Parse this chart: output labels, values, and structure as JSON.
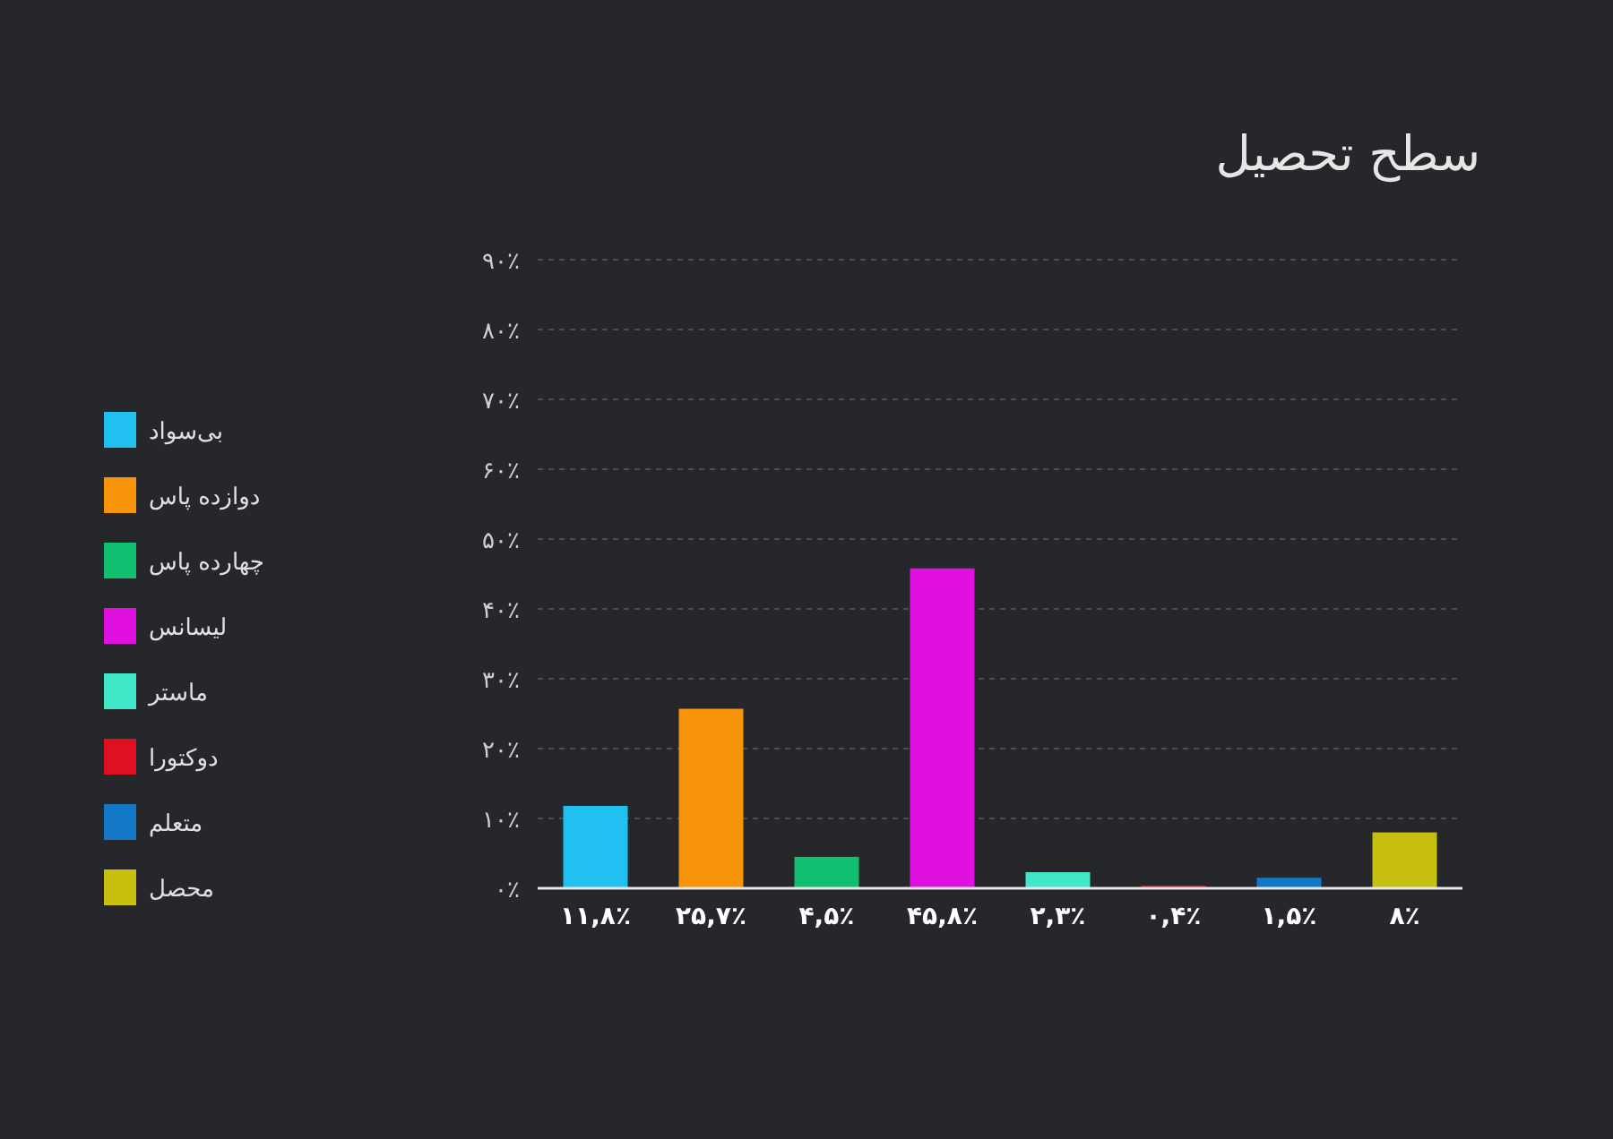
{
  "chart_data": {
    "type": "bar",
    "title": "سطح تحصیل",
    "categories": [
      null,
      null,
      null,
      null,
      null,
      null,
      null,
      null
    ],
    "series": [
      {
        "name": "بی‌سواد",
        "color": "#20c0f0",
        "values": [
          11.8,
          null,
          null,
          null,
          null,
          null,
          null,
          null
        ],
        "value_labels": [
          "۱۱,۸٪",
          null,
          null,
          null,
          null,
          null,
          null,
          null
        ]
      },
      {
        "name": "دوازده پاس",
        "color": "#f7940a",
        "values": [
          null,
          25.7,
          null,
          null,
          null,
          null,
          null,
          null
        ],
        "value_labels": [
          null,
          "۲۵,۷٪",
          null,
          null,
          null,
          null,
          null,
          null
        ]
      },
      {
        "name": "چهارده پاس",
        "color": "#10c070",
        "values": [
          null,
          null,
          4.5,
          null,
          null,
          null,
          null,
          null
        ],
        "value_labels": [
          null,
          null,
          "۴,۵٪",
          null,
          null,
          null,
          null,
          null
        ]
      },
      {
        "name": "لیسانس",
        "color": "#e010e0",
        "values": [
          null,
          null,
          null,
          45.8,
          null,
          null,
          null,
          null
        ],
        "value_labels": [
          null,
          null,
          null,
          "۴۵,۸٪",
          null,
          null,
          null,
          null
        ]
      },
      {
        "name": "ماستر",
        "color": "#40e8c8",
        "values": [
          null,
          null,
          null,
          null,
          2.3,
          null,
          null,
          null
        ],
        "value_labels": [
          null,
          null,
          null,
          null,
          "۲,۳٪",
          null,
          null,
          null
        ]
      },
      {
        "name": "دوکتورا",
        "color": "#e01020",
        "values": [
          null,
          null,
          null,
          null,
          null,
          0.4,
          null,
          null
        ],
        "value_labels": [
          null,
          null,
          null,
          null,
          null,
          "۰,۴٪",
          null,
          null
        ]
      },
      {
        "name": "متعلم",
        "color": "#1478c8",
        "values": [
          null,
          null,
          null,
          null,
          null,
          null,
          1.5,
          null
        ],
        "value_labels": [
          null,
          null,
          null,
          null,
          null,
          null,
          "۱,۵٪",
          null
        ]
      },
      {
        "name": "محصل",
        "color": "#c8c010",
        "values": [
          null,
          null,
          null,
          null,
          null,
          null,
          null,
          8
        ],
        "value_labels": [
          null,
          null,
          null,
          null,
          null,
          null,
          null,
          "۸٪"
        ]
      }
    ],
    "ylim": [
      0,
      90
    ],
    "yticks": [
      {
        "value": 0,
        "label": "۰٪"
      },
      {
        "value": 10,
        "label": "۱۰٪"
      },
      {
        "value": 20,
        "label": "۲۰٪"
      },
      {
        "value": 30,
        "label": "۳۰٪"
      },
      {
        "value": 40,
        "label": "۴۰٪"
      },
      {
        "value": 50,
        "label": "۵۰٪"
      },
      {
        "value": 60,
        "label": "۶۰٪"
      },
      {
        "value": 70,
        "label": "۷۰٪"
      },
      {
        "value": 80,
        "label": "۸۰٪"
      },
      {
        "value": 90,
        "label": "۹۰٪"
      }
    ],
    "grid": "y",
    "legend": "left"
  }
}
